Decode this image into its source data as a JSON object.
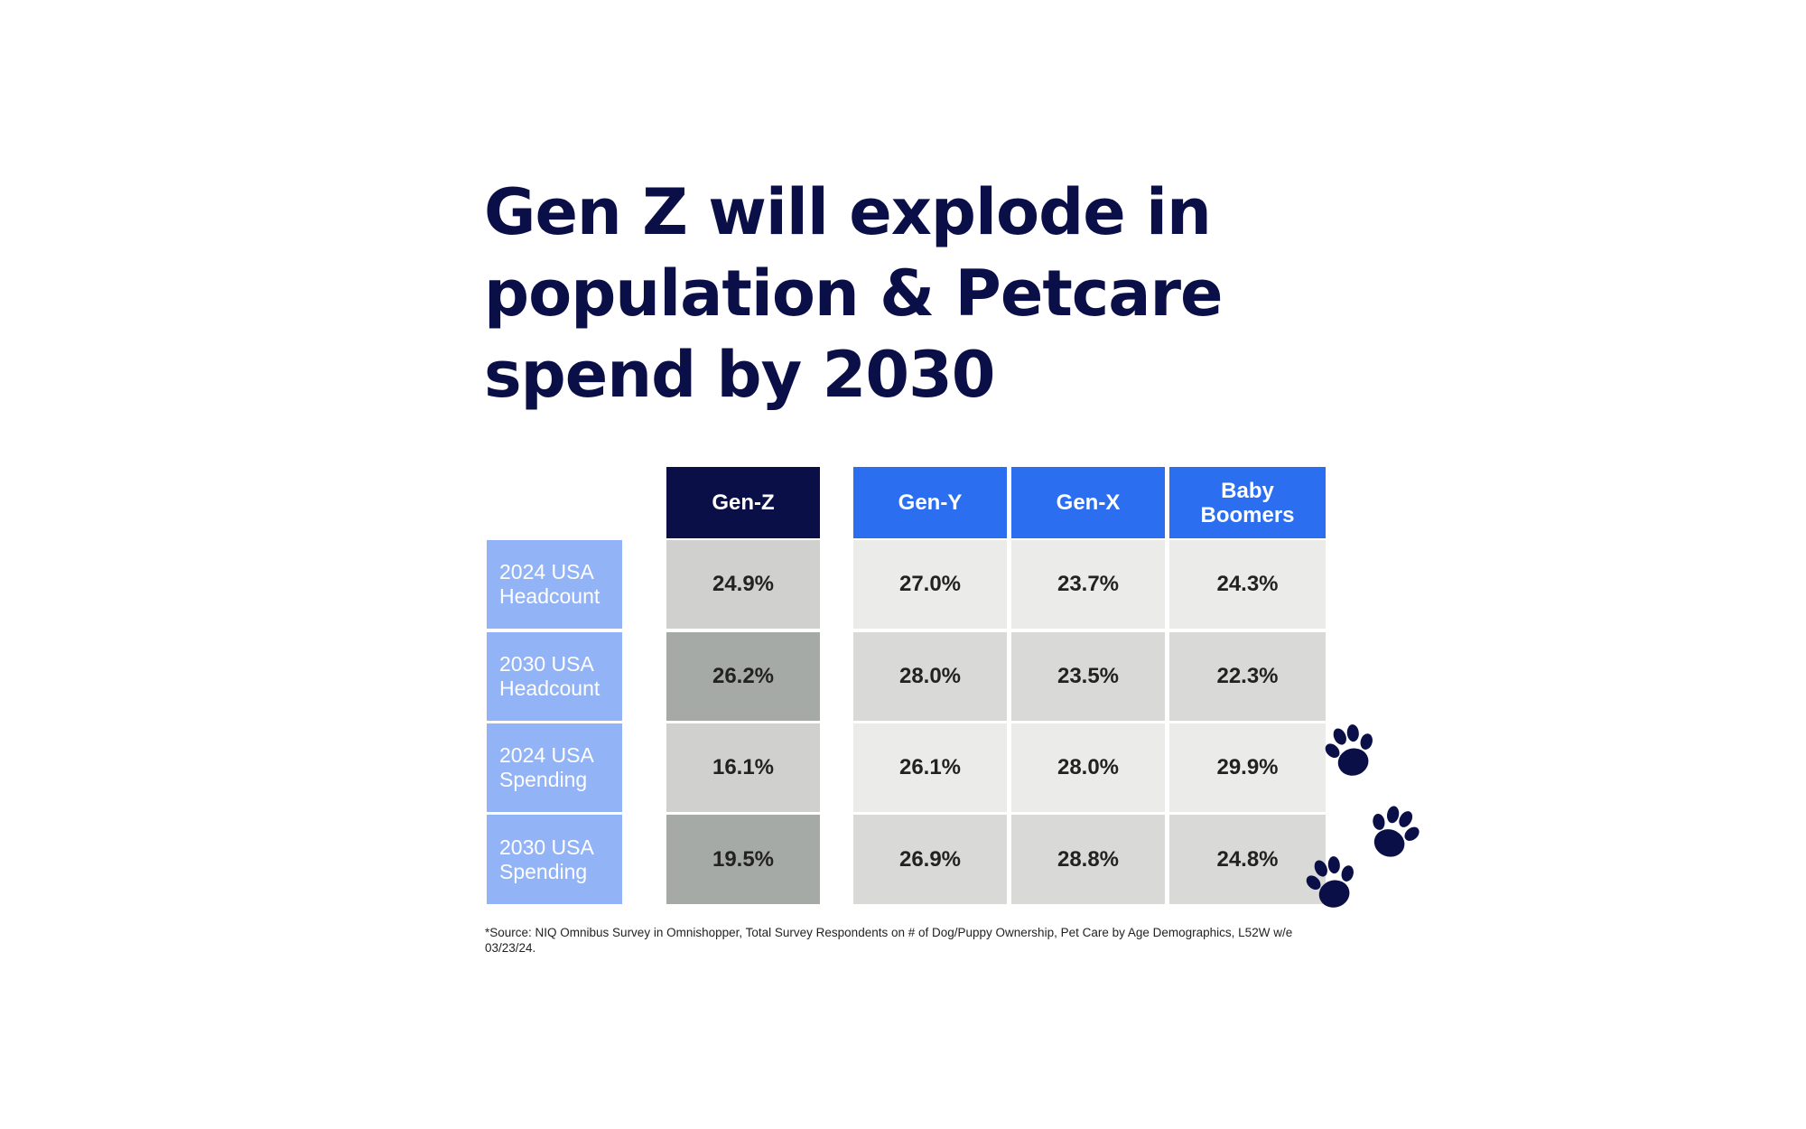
{
  "title_lines": [
    "Gen Z will explode in",
    "population & Petcare",
    "spend by 2030"
  ],
  "chart_data": {
    "type": "table",
    "columns": [
      "Gen-Z",
      "Gen-Y",
      "Gen-X",
      "Baby Boomers"
    ],
    "column_header_lines": [
      [
        "Gen-Z"
      ],
      [
        "Gen-Y"
      ],
      [
        "Gen-X"
      ],
      [
        "Baby",
        "Boomers"
      ]
    ],
    "rows": [
      {
        "label_lines": [
          "2024 USA",
          "Headcount"
        ],
        "values": [
          "24.9%",
          "27.0%",
          "23.7%",
          "24.3%"
        ]
      },
      {
        "label_lines": [
          "2030 USA",
          "Headcount"
        ],
        "values": [
          "26.2%",
          "28.0%",
          "23.5%",
          "22.3%"
        ]
      },
      {
        "label_lines": [
          "2024 USA",
          "Spending"
        ],
        "values": [
          "16.1%",
          "26.1%",
          "28.0%",
          "29.9%"
        ]
      },
      {
        "label_lines": [
          "2030 USA",
          "Spending"
        ],
        "values": [
          "19.5%",
          "26.9%",
          "28.8%",
          "24.8%"
        ]
      }
    ]
  },
  "colors": {
    "title": "#0b0f47",
    "genz_header": "#0b0f47",
    "other_header": "#2b6ff0",
    "row_label_bg": "#93b3f7",
    "genz_light": "#d0d0ce",
    "genz_dark": "#a6aaa7",
    "other_light": "#ebebe9",
    "other_dark": "#d9d9d7",
    "paw": "#0b0f47"
  },
  "icons": [
    "paw-print-icon",
    "paw-print-icon",
    "paw-print-icon"
  ],
  "footnote_lines": [
    "*Source: NIQ Omnibus Survey in Omnishopper, Total Survey Respondents on # of Dog/Puppy Ownership, Pet Care by Age Demographics, L52W w/e",
    "03/23/24."
  ]
}
